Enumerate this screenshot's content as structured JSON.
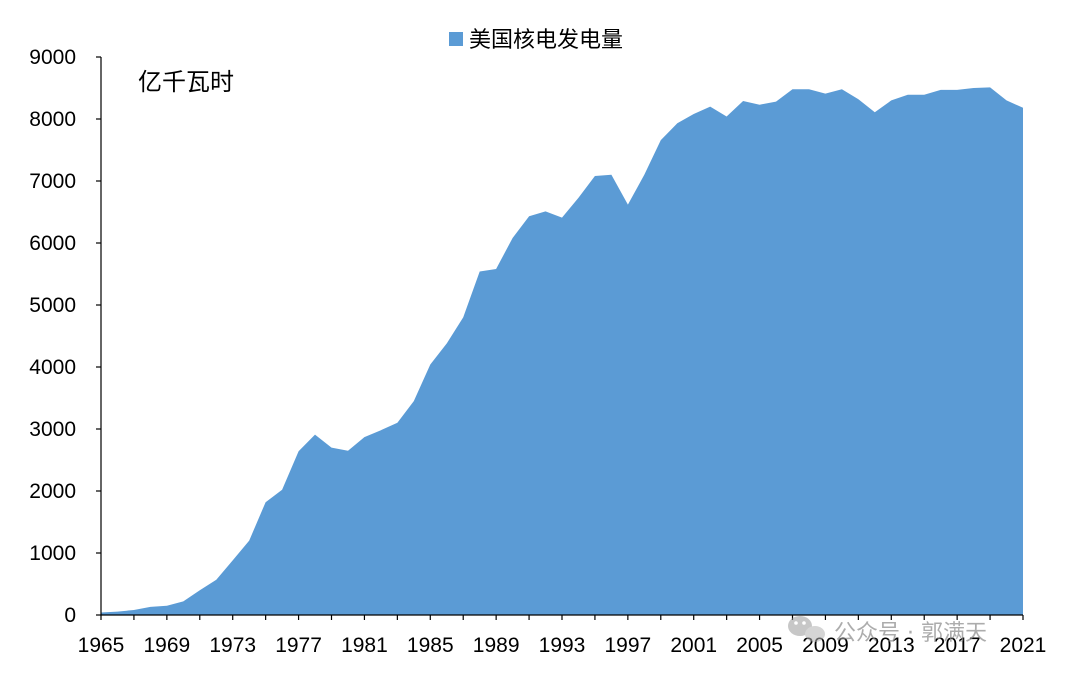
{
  "chart_data": {
    "type": "area",
    "unit_label": "亿千瓦时",
    "legend": {
      "label": "美国核电发电量",
      "placement": "top-center"
    },
    "series": [
      {
        "name": "美国核电发电量",
        "color": "#5b9bd5",
        "x": [
          1965,
          1966,
          1967,
          1968,
          1969,
          1970,
          1971,
          1972,
          1973,
          1974,
          1975,
          1976,
          1977,
          1978,
          1979,
          1980,
          1981,
          1982,
          1983,
          1984,
          1985,
          1986,
          1987,
          1988,
          1989,
          1990,
          1991,
          1992,
          1993,
          1994,
          1995,
          1996,
          1997,
          1998,
          1999,
          2000,
          2001,
          2002,
          2003,
          2004,
          2005,
          2006,
          2007,
          2008,
          2009,
          2010,
          2011,
          2012,
          2013,
          2014,
          2015,
          2016,
          2017,
          2018,
          2019,
          2020,
          2021
        ],
        "values": [
          40,
          55,
          80,
          130,
          150,
          220,
          400,
          570,
          880,
          1200,
          1820,
          2020,
          2640,
          2910,
          2700,
          2650,
          2870,
          2980,
          3100,
          3450,
          4040,
          4380,
          4800,
          5540,
          5580,
          6080,
          6430,
          6510,
          6410,
          6730,
          7080,
          7100,
          6620,
          7100,
          7660,
          7930,
          8080,
          8200,
          8040,
          8290,
          8230,
          8280,
          8480,
          8480,
          8410,
          8480,
          8320,
          8110,
          8300,
          8390,
          8390,
          8470,
          8470,
          8500,
          8510,
          8300,
          8180
        ]
      }
    ],
    "x_ticks": [
      "1965",
      "1969",
      "1973",
      "1977",
      "1981",
      "1985",
      "1989",
      "1993",
      "1997",
      "2001",
      "2005",
      "2009",
      "2013",
      "2017",
      "2021"
    ],
    "y_ticks": [
      "0",
      "1000",
      "2000",
      "3000",
      "4000",
      "5000",
      "6000",
      "7000",
      "8000",
      "9000"
    ],
    "xlim": [
      1965,
      2021
    ],
    "ylim": [
      0,
      9000
    ],
    "grid": false
  },
  "watermark": {
    "text": "公众号 · 郭满天",
    "icon": "wechat-icon"
  }
}
